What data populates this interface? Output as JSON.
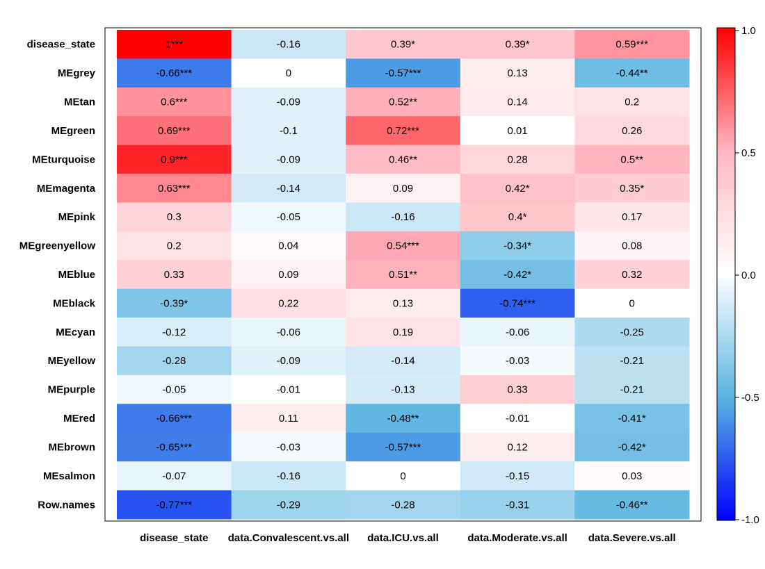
{
  "chart_data": {
    "type": "heatmap",
    "title": "",
    "xlabel": "",
    "ylabel": "",
    "columns": [
      "disease_state",
      "data.Convalescent.vs.all",
      "data.ICU.vs.all",
      "data.Moderate.vs.all",
      "data.Severe.vs.all"
    ],
    "rows": [
      "disease_state",
      "MEgrey",
      "MEtan",
      "MEgreen",
      "MEturquoise",
      "MEmagenta",
      "MEpink",
      "MEgreenyellow",
      "MEblue",
      "MEblack",
      "MEcyan",
      "MEyellow",
      "MEpurple",
      "MEred",
      "MEbrown",
      "MEsalmon",
      "Row.names"
    ],
    "values": [
      [
        1,
        -0.16,
        0.39,
        0.39,
        0.59
      ],
      [
        -0.66,
        0,
        -0.57,
        0.13,
        -0.44
      ],
      [
        0.6,
        -0.09,
        0.52,
        0.14,
        0.2
      ],
      [
        0.69,
        -0.1,
        0.72,
        0.01,
        0.26
      ],
      [
        0.9,
        -0.09,
        0.46,
        0.28,
        0.5
      ],
      [
        0.63,
        -0.14,
        0.09,
        0.42,
        0.35
      ],
      [
        0.3,
        -0.05,
        -0.16,
        0.4,
        0.17
      ],
      [
        0.2,
        0.04,
        0.54,
        -0.34,
        0.08
      ],
      [
        0.33,
        0.09,
        0.51,
        -0.42,
        0.32
      ],
      [
        -0.39,
        0.22,
        0.13,
        -0.74,
        0
      ],
      [
        -0.12,
        -0.06,
        0.19,
        -0.06,
        -0.25
      ],
      [
        -0.28,
        -0.09,
        -0.14,
        -0.03,
        -0.21
      ],
      [
        -0.05,
        -0.01,
        -0.13,
        0.33,
        -0.21
      ],
      [
        -0.66,
        0.11,
        -0.48,
        -0.01,
        -0.41
      ],
      [
        -0.65,
        -0.03,
        -0.57,
        0.12,
        -0.42
      ],
      [
        -0.07,
        -0.16,
        0,
        -0.15,
        0.03
      ],
      [
        -0.77,
        -0.29,
        -0.28,
        -0.31,
        -0.46
      ]
    ],
    "labels": [
      [
        "1***",
        "-0.16",
        "0.39*",
        "0.39*",
        "0.59***"
      ],
      [
        "-0.66***",
        "0",
        "-0.57***",
        "0.13",
        "-0.44**"
      ],
      [
        "0.6***",
        "-0.09",
        "0.52**",
        "0.14",
        "0.2"
      ],
      [
        "0.69***",
        "-0.1",
        "0.72***",
        "0.01",
        "0.26"
      ],
      [
        "0.9***",
        "-0.09",
        "0.46**",
        "0.28",
        "0.5**"
      ],
      [
        "0.63***",
        "-0.14",
        "0.09",
        "0.42*",
        "0.35*"
      ],
      [
        "0.3",
        "-0.05",
        "-0.16",
        "0.4*",
        "0.17"
      ],
      [
        "0.2",
        "0.04",
        "0.54***",
        "-0.34*",
        "0.08"
      ],
      [
        "0.33",
        "0.09",
        "0.51**",
        "-0.42*",
        "0.32"
      ],
      [
        "-0.39*",
        "0.22",
        "0.13",
        "-0.74***",
        "0"
      ],
      [
        "-0.12",
        "-0.06",
        "0.19",
        "-0.06",
        "-0.25"
      ],
      [
        "-0.28",
        "-0.09",
        "-0.14",
        "-0.03",
        "-0.21"
      ],
      [
        "-0.05",
        "-0.01",
        "-0.13",
        "0.33",
        "-0.21"
      ],
      [
        "-0.66***",
        "0.11",
        "-0.48**",
        "-0.01",
        "-0.41*"
      ],
      [
        "-0.65***",
        "-0.03",
        "-0.57***",
        "0.12",
        "-0.42*"
      ],
      [
        "-0.07",
        "-0.16",
        "0",
        "-0.15",
        "0.03"
      ],
      [
        "-0.77***",
        "-0.29",
        "-0.28",
        "-0.31",
        "-0.46**"
      ]
    ],
    "colorscale": {
      "min": -1,
      "max": 1,
      "ticks": [
        1,
        0.5,
        0,
        -0.5,
        -1
      ],
      "tick_labels": [
        "1.0",
        "0.5",
        "0.0",
        "-0.5",
        "-1.0"
      ],
      "colors": {
        "neg_strong": "#0000ff",
        "neg_mid": "#5ab4e0",
        "neutral": "#ffffff",
        "pos_mid": "#ffb6c1",
        "pos_strong": "#ff0000"
      }
    },
    "legend": "right"
  }
}
